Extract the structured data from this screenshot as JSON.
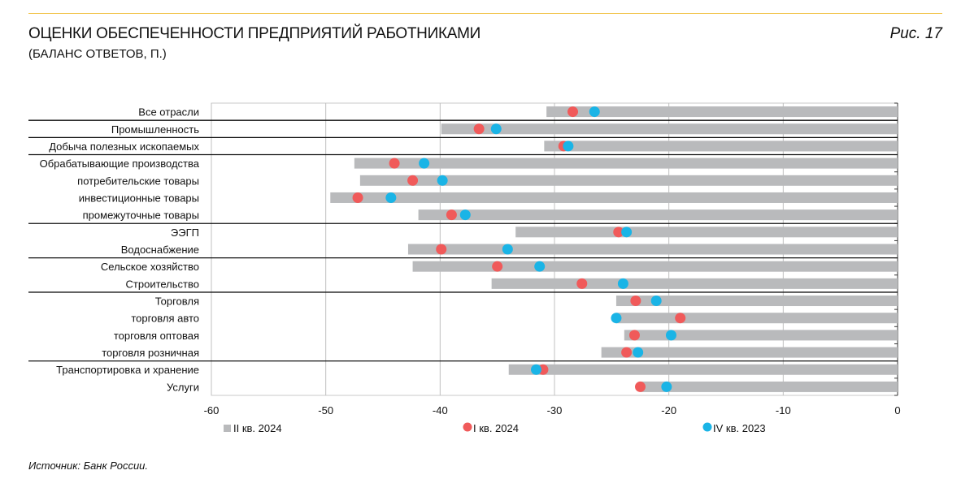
{
  "header": {
    "title": "ОЦЕНКИ ОБЕСПЕЧЕННОСТИ ПРЕДПРИЯТИЙ РАБОТНИКАМИ",
    "subtitle": "(БАЛАНС ОТВЕТОВ, П.)",
    "figure": "Рис. 17"
  },
  "source": "Источник: Банк России.",
  "chart_data": {
    "type": "bar",
    "orientation": "horizontal",
    "categories": [
      "Все отрасли",
      "Промышленность",
      "Добыча полезных ископаемых",
      "Обрабатывающие производства",
      "потребительские товары",
      "инвестиционные товары",
      "промежуточные товары",
      "ЭЭГП",
      "Водоснабжение",
      "Сельское хозяйство",
      "Строительство",
      "Торговля",
      "торговля авто",
      "торговля оптовая",
      "торговля розничная",
      "Транспортировка и хранение",
      "Услуги"
    ],
    "series": [
      {
        "name": "II кв. 2024",
        "type": "bar",
        "color": "#b9babc",
        "values": [
          -30.7,
          -39.9,
          -30.9,
          -47.5,
          -47.0,
          -49.6,
          -41.9,
          -33.4,
          -42.8,
          -42.4,
          -35.5,
          -24.6,
          -24.6,
          -23.9,
          -25.9,
          -34.0,
          -22.5
        ]
      },
      {
        "name": "I кв. 2024",
        "type": "scatter",
        "color": "#f05a5a",
        "values": [
          -28.4,
          -36.6,
          -29.2,
          -44.0,
          -42.4,
          -47.2,
          -39.0,
          -24.4,
          -39.9,
          -35.0,
          -27.6,
          -22.9,
          -19.0,
          -23.0,
          -23.7,
          -31.0,
          -22.5
        ]
      },
      {
        "name": "IV кв. 2023",
        "type": "scatter",
        "color": "#1ab4e6",
        "values": [
          -26.5,
          -35.1,
          -28.8,
          -41.4,
          -39.8,
          -44.3,
          -37.8,
          -23.7,
          -34.1,
          -31.3,
          -24.0,
          -21.1,
          -24.6,
          -19.8,
          -22.7,
          -31.6,
          -20.2
        ]
      }
    ],
    "xlim": [
      -60,
      0
    ],
    "xticks": [
      -60,
      -50,
      -40,
      -30,
      -20,
      -10,
      0
    ],
    "grid": true,
    "legend": "bottom",
    "group_separators_after": [
      0,
      1,
      2,
      6,
      8,
      10,
      14
    ]
  }
}
